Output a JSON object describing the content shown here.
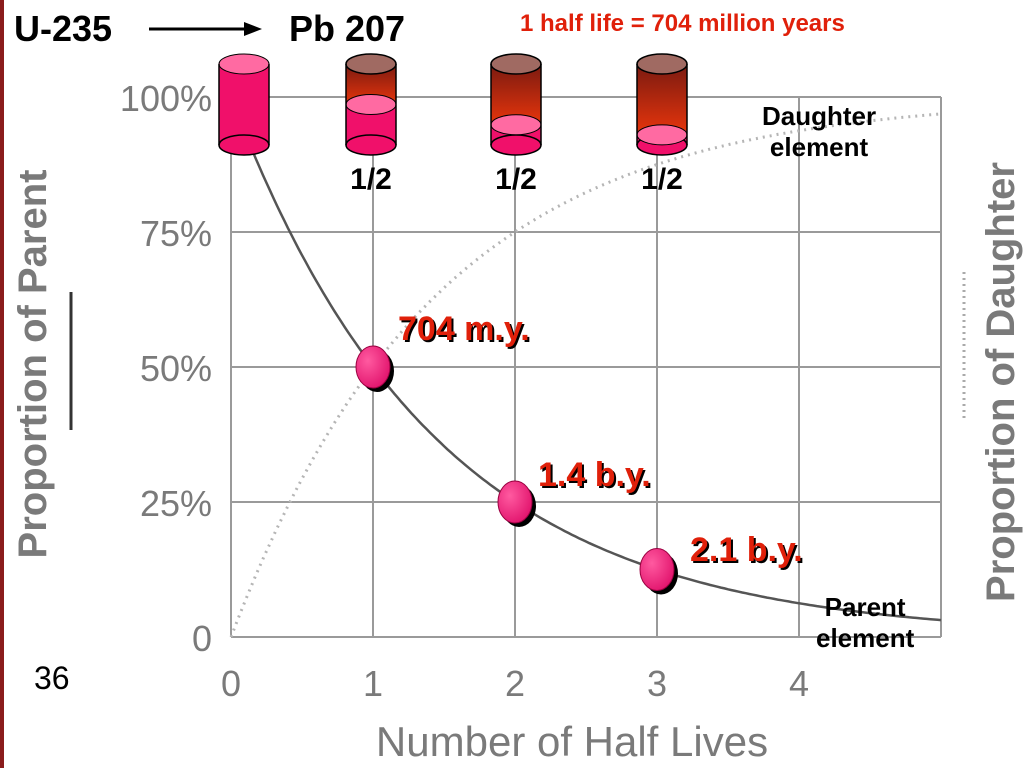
{
  "header": {
    "parent_isotope": "U-235",
    "daughter_isotope": "Pb 207",
    "half_life_note": "1 half life = 704 million years",
    "fractions": [
      "1/2",
      "1/2",
      "1/2"
    ]
  },
  "legend": {
    "daughter_line1": "Daughter",
    "daughter_line2": "element",
    "parent_line1": "Parent",
    "parent_line2": "element"
  },
  "slide_number": "36",
  "point_labels": [
    "704 m.y.",
    "1.4 b.y.",
    "2.1 b.y."
  ],
  "colors": {
    "accent_red": "#e0200a",
    "marker_pink": "#ee1470",
    "curve": "#555555",
    "grid": "#9a9a9a",
    "axis_text": "#7a7a7a"
  },
  "chart_data": {
    "type": "line",
    "xlabel": "Number of Half Lives",
    "ylabel": "Proportion of Parent",
    "ylabel_right": "Proportion of Daughter",
    "x_ticks": [
      "0",
      "1",
      "2",
      "3",
      "4"
    ],
    "y_ticks": [
      "0",
      "25%",
      "50%",
      "75%",
      "100%"
    ],
    "xlim": [
      0,
      5
    ],
    "ylim": [
      0,
      100
    ],
    "grid": true,
    "series": [
      {
        "name": "Parent element",
        "style": "solid",
        "x": [
          0,
          0.5,
          1,
          1.5,
          2,
          2.5,
          3,
          3.5,
          4,
          4.5,
          5
        ],
        "y": [
          100,
          70.7,
          50,
          35.4,
          25,
          17.7,
          12.5,
          8.8,
          6.25,
          4.4,
          3.1
        ]
      },
      {
        "name": "Daughter element",
        "style": "dotted",
        "x": [
          0,
          0.5,
          1,
          1.5,
          2,
          2.5,
          3,
          3.5,
          4,
          4.5,
          5
        ],
        "y": [
          0,
          29.3,
          50,
          64.6,
          75,
          82.3,
          87.5,
          91.2,
          93.75,
          95.6,
          96.9
        ]
      }
    ],
    "markers": [
      {
        "x": 1,
        "y": 50
      },
      {
        "x": 2,
        "y": 25
      },
      {
        "x": 3,
        "y": 12.5
      }
    ],
    "containers": [
      {
        "parent_fraction": 100
      },
      {
        "parent_fraction": 50
      },
      {
        "parent_fraction": 25
      },
      {
        "parent_fraction": 12.5
      }
    ]
  }
}
